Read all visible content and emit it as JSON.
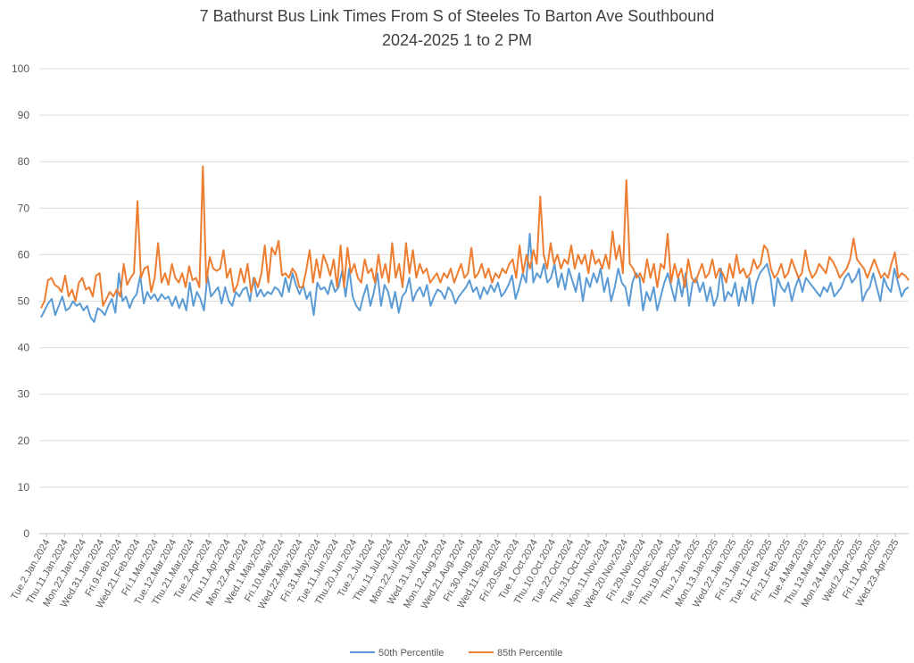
{
  "chart_data": {
    "type": "line",
    "title_lines": [
      "7 Bathurst Bus Link Times From S of Steeles To Barton Ave Southbound",
      "2024-2025 1 to 2 PM"
    ],
    "xlabel": "",
    "ylabel": "",
    "ylim": [
      0,
      100
    ],
    "yticks": [
      0,
      10,
      20,
      30,
      40,
      50,
      60,
      70,
      80,
      90,
      100
    ],
    "grid": "horizontal",
    "legend": "bottom",
    "colors": {
      "p50": "#5b9bd5",
      "p85": "#ed7d31",
      "grid": "#d9d9d9",
      "axis": "#bfbfbf"
    },
    "x_tick_labels": [
      "Tue.2.Jan.2024",
      "Thu.11.Jan.2024",
      "Mon.22.Jan.2024",
      "Wed.31.Jan.2024",
      "Fri.9.Feb.2024",
      "Wed.21.Feb.2024",
      "Fri.1.Mar.2024",
      "Tue.12.Mar.2024",
      "Thu.21.Mar.2024",
      "Tue.2.Apr.2024",
      "Thu.11.Apr.2024",
      "Mon.22.Apr.2024",
      "Wed.1.May.2024",
      "Fri.10.May.2024",
      "Wed.22.May.2024",
      "Fri.31.May.2024",
      "Tue.11.Jun.2024",
      "Thu.20.Jun.2024",
      "Tue.2.Jul.2024",
      "Thu.11.Jul.2024",
      "Mon.22.Jul.2024",
      "Wed.31.Jul.2024",
      "Mon.12.Aug.2024",
      "Wed.21.Aug.2024",
      "Fri.30.Aug.2024",
      "Wed.11.Sep.2024",
      "Fri.20.Sep.2024",
      "Tue.1.Oct.2024",
      "Thu.10.Oct.2024",
      "Tue.22.Oct.2024",
      "Thu.31.Oct.2024",
      "Mon.11.Nov.2024",
      "Wed.20.Nov.2024",
      "Fri.29.Nov.2024",
      "Tue.10.Dec.2024",
      "Thu.19.Dec.2024",
      "Thu.2.Jan.2025",
      "Mon.13.Jan.2025",
      "Wed.22.Jan.2025",
      "Fri.31.Jan.2025",
      "Tue.11.Feb.2025",
      "Fri.21.Feb.2025",
      "Tue.4.Mar.2025",
      "Thu.13.Mar.2025",
      "Mon.24.Mar.2025",
      "Wed.2.Apr.2025",
      "Fri.11.Apr.2025",
      "Wed.23.Apr.2025"
    ],
    "series": [
      {
        "name": "50th Percentile",
        "values": [
          46.5,
          48,
          49.5,
          50.5,
          47,
          49,
          51,
          48,
          48.5,
          50,
          49,
          49.5,
          48,
          49,
          46.5,
          45.5,
          48.5,
          48,
          47,
          49,
          50.5,
          47.5,
          56,
          50,
          51,
          48.5,
          50.5,
          51.5,
          55.5,
          49.5,
          52,
          50.5,
          51.5,
          50,
          51.5,
          50.5,
          51,
          49,
          51,
          48.5,
          50.5,
          48,
          54,
          49,
          52,
          50.5,
          48,
          55.5,
          51,
          52,
          53,
          49.5,
          53,
          50,
          49,
          52,
          51,
          52.5,
          53,
          50,
          55,
          51,
          52.5,
          51,
          52,
          51.5,
          53,
          52.5,
          51,
          55,
          52,
          56,
          53.5,
          51.5,
          53.5,
          50.5,
          52,
          47,
          54,
          52.5,
          53,
          51.5,
          54.5,
          52,
          53,
          56.5,
          51,
          57,
          51,
          49,
          48,
          51,
          53.5,
          49,
          52,
          56,
          49,
          53.5,
          52,
          48.5,
          52,
          47.5,
          51,
          52,
          55,
          50,
          52,
          53,
          51,
          53.5,
          49,
          51,
          52.5,
          52,
          50.5,
          53,
          52,
          49.5,
          51,
          52,
          53,
          54.5,
          52,
          53,
          50.5,
          53,
          51.5,
          53.5,
          52,
          54,
          51,
          52,
          53.5,
          55.5,
          50.5,
          53,
          56,
          54,
          64.5,
          54,
          56,
          55,
          58,
          54,
          55,
          58,
          53,
          56,
          52.5,
          57,
          54.5,
          52,
          56,
          50,
          55,
          53,
          56,
          54,
          57,
          52,
          55,
          50,
          53,
          57,
          54,
          53,
          49,
          54,
          56,
          55,
          48,
          52,
          50,
          53,
          48,
          51,
          54,
          56,
          53,
          50,
          55,
          51,
          56,
          49,
          54,
          55,
          52,
          54,
          50,
          53,
          49,
          51,
          57,
          50,
          52,
          51,
          54,
          49,
          53,
          50,
          55,
          49.5,
          54,
          56,
          57,
          58,
          55,
          49,
          55,
          53,
          52,
          54,
          50,
          53,
          55,
          52,
          55,
          54,
          53,
          52,
          51,
          53,
          52,
          54,
          51,
          52,
          53,
          55,
          56,
          54,
          55,
          57,
          50,
          52,
          53,
          56,
          53,
          50,
          55,
          53,
          52,
          57,
          54,
          51,
          52.5,
          53
        ]
      },
      {
        "name": "85th Percentile",
        "values": [
          48.5,
          50,
          54.5,
          55,
          53.5,
          53,
          52,
          55.5,
          51,
          52.5,
          50,
          54,
          55,
          52.5,
          53,
          51,
          55.5,
          56,
          49,
          50.5,
          52,
          51,
          52.5,
          51,
          58,
          53.5,
          55,
          56,
          71.5,
          55,
          57,
          57.5,
          52,
          55,
          62.5,
          54,
          56,
          53.5,
          58,
          55,
          54,
          56,
          53,
          57.5,
          54.5,
          55,
          53,
          79,
          54,
          59.5,
          57,
          56.5,
          57,
          61,
          55,
          57,
          52,
          53.5,
          57,
          54,
          58,
          52,
          55,
          53,
          56,
          62,
          54,
          61.5,
          60,
          63,
          55.5,
          56,
          55,
          57,
          56,
          53,
          53,
          56.5,
          61,
          54,
          59,
          55,
          60,
          58,
          55.5,
          59,
          53,
          62,
          53,
          61.5,
          56,
          58,
          55,
          54,
          59,
          56,
          57,
          54,
          60,
          55,
          58,
          54,
          62.5,
          55,
          58,
          53,
          62.5,
          56,
          61,
          55,
          58,
          56,
          57,
          54,
          55,
          56,
          54,
          56,
          55,
          57,
          54,
          56,
          58,
          55,
          56,
          61.5,
          55,
          56,
          58,
          55,
          57,
          54,
          56,
          55,
          57,
          56,
          58,
          59,
          55,
          62,
          56,
          60,
          57,
          61,
          58,
          72.5,
          60,
          57,
          62.5,
          58,
          60,
          57,
          59,
          58,
          62,
          57,
          60,
          58,
          60,
          56,
          61,
          58,
          59,
          57,
          60,
          57,
          65,
          59,
          62,
          56,
          76,
          58,
          57,
          55,
          56,
          54,
          59,
          55,
          58,
          53,
          58,
          57,
          64.5,
          54,
          58,
          55,
          57,
          53,
          59,
          55,
          54,
          56,
          58,
          55,
          56,
          59,
          55,
          57,
          56,
          54,
          58,
          55,
          60,
          56,
          57,
          55,
          56,
          59,
          57,
          58,
          62,
          61,
          57,
          55,
          56,
          58,
          55,
          56,
          59,
          57,
          55,
          56,
          61,
          57,
          55,
          56,
          58,
          57,
          56,
          59.5,
          58.5,
          57,
          55,
          56,
          57,
          59,
          63.5,
          59,
          58,
          57,
          55,
          57,
          59,
          57,
          55,
          56,
          55,
          58,
          60.5,
          55,
          56,
          55.5,
          54.5
        ]
      }
    ]
  }
}
